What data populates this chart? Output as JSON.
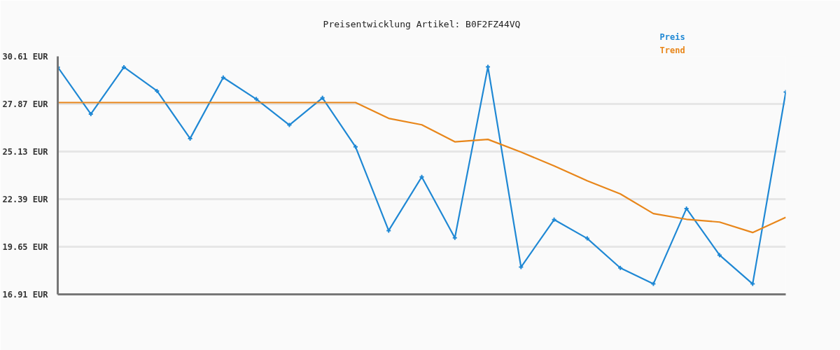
{
  "chart_data": {
    "type": "line",
    "title": "Preisentwicklung Artikel: B0F2FZ44VQ",
    "categories": [
      null,
      null,
      null,
      null,
      null,
      null,
      null,
      null,
      null,
      null,
      null,
      null,
      null,
      null,
      null,
      null,
      null,
      null,
      null,
      null,
      null,
      null,
      null
    ],
    "series": [
      {
        "name": "Preis",
        "color": "#1f88d4",
        "marker": "cross",
        "values": [
          29.99,
          27.29,
          29.99,
          28.62,
          25.88,
          29.39,
          28.15,
          26.66,
          28.22,
          25.4,
          20.58,
          23.67,
          20.16,
          30.01,
          18.48,
          21.21,
          20.13,
          18.43,
          17.51,
          21.85,
          19.17,
          17.51,
          28.55
        ]
      },
      {
        "name": "Trend",
        "color": "#e8861a",
        "marker": "none",
        "values": [
          27.95,
          27.95,
          27.95,
          27.95,
          27.95,
          27.95,
          27.95,
          27.95,
          27.95,
          27.95,
          27.04,
          26.67,
          25.69,
          25.83,
          25.1,
          24.3,
          23.45,
          22.69,
          21.56,
          21.23,
          21.07,
          20.47,
          21.34
        ]
      }
    ],
    "ylim": [
      16.91,
      30.61
    ],
    "yticks": [
      {
        "value": 16.91,
        "label": "16.91 EUR"
      },
      {
        "value": 19.65,
        "label": "19.65 EUR"
      },
      {
        "value": 22.39,
        "label": "22.39 EUR"
      },
      {
        "value": 25.13,
        "label": "25.13 EUR"
      },
      {
        "value": 27.87,
        "label": "27.87 EUR"
      },
      {
        "value": 30.61,
        "label": "30.61 EUR"
      }
    ],
    "grid": "y",
    "legend": "top right",
    "tick_labels": "y"
  }
}
